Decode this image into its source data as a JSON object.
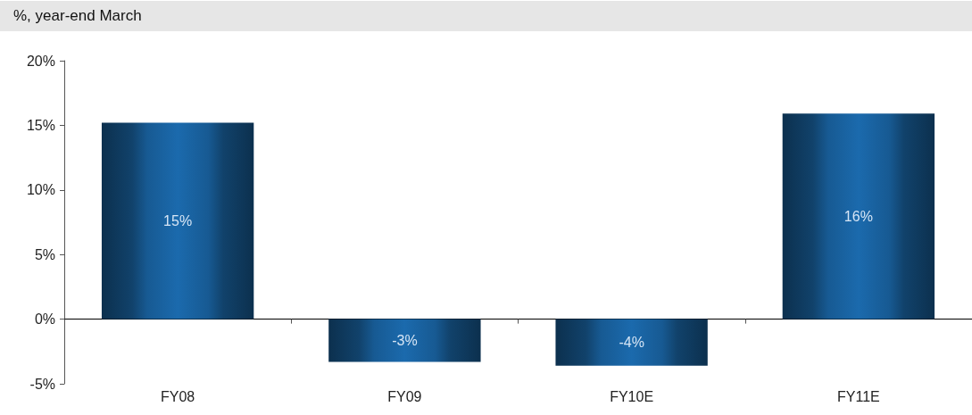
{
  "chart_data": {
    "type": "bar",
    "title": "%, year-end March",
    "categories": [
      "FY08",
      "FY09",
      "FY10E",
      "FY11E"
    ],
    "values": [
      15.2,
      -3.3,
      -3.6,
      15.9
    ],
    "value_labels": [
      "15%",
      "-3%",
      "-4%",
      "16%"
    ],
    "color": "#1b6aad",
    "ylim": [
      -5,
      20
    ],
    "yticks": [
      {
        "value": -5,
        "label": "-5%"
      },
      {
        "value": 0,
        "label": "0%"
      },
      {
        "value": 5,
        "label": "5%"
      },
      {
        "value": 10,
        "label": "10%"
      },
      {
        "value": 15,
        "label": "15%"
      },
      {
        "value": 20,
        "label": "20%"
      }
    ]
  }
}
